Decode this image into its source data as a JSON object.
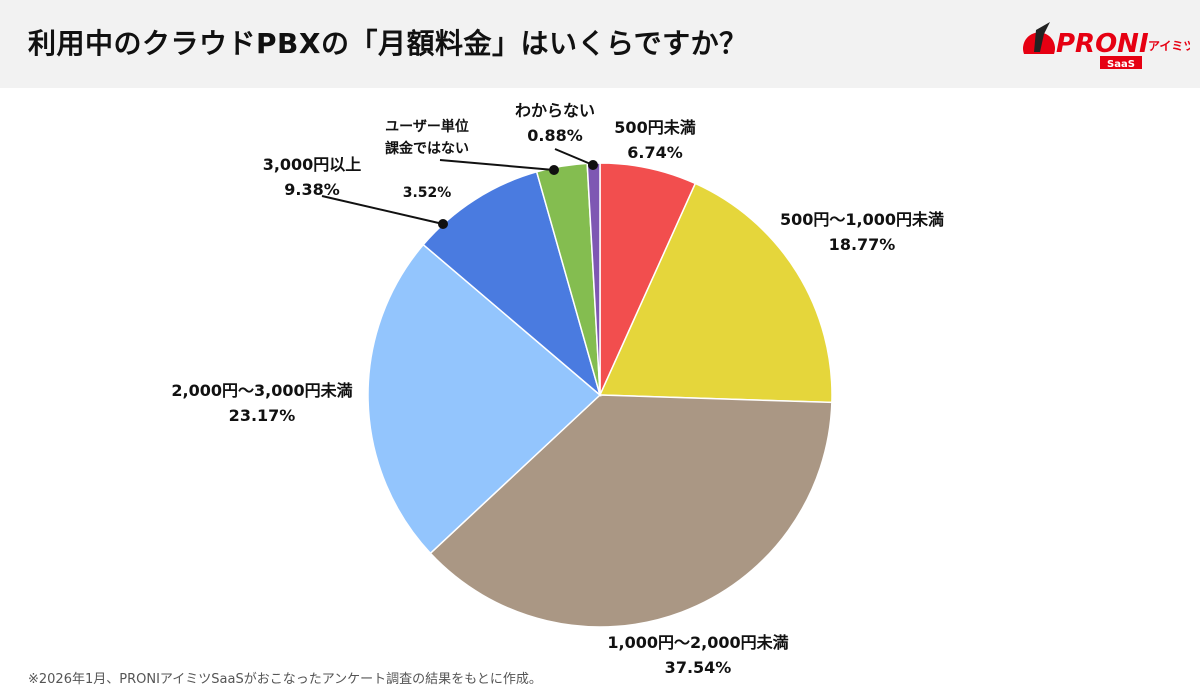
{
  "header": {
    "title": "利用中のクラウドPBXの「月額料金」はいくらですか？"
  },
  "logo": {
    "text": "PRONI",
    "sub": "アイミツ",
    "badge": "SaaS",
    "color": "#E60012"
  },
  "chart_data": {
    "type": "pie",
    "start": "top",
    "direction": "clockwise",
    "slices": [
      {
        "label": "500円未満",
        "value": 6.74,
        "display": "6.74%",
        "color": "#F24E4E"
      },
      {
        "label": "500円〜1,000円未満",
        "value": 18.77,
        "display": "18.77%",
        "color": "#E5D63B"
      },
      {
        "label": "1,000円〜2,000円未満",
        "value": 37.54,
        "display": "37.54%",
        "color": "#AA9784"
      },
      {
        "label": "2,000円〜3,000円未満",
        "value": 23.17,
        "display": "23.17%",
        "color": "#93C5FD"
      },
      {
        "label": "3,000円以上",
        "value": 9.38,
        "display": "9.38%",
        "color": "#4A7BE0"
      },
      {
        "label": "ユーザー単位\n課金ではない",
        "value": 3.52,
        "display": "3.52%",
        "color": "#84BD50"
      },
      {
        "label": "わからない",
        "value": 0.88,
        "display": "0.88%",
        "color": "#7E57B3"
      }
    ]
  },
  "footnote": "※2026年1月、PRONIアイミツSaaSがおこなったアンケート調査の結果をもとに作成。"
}
